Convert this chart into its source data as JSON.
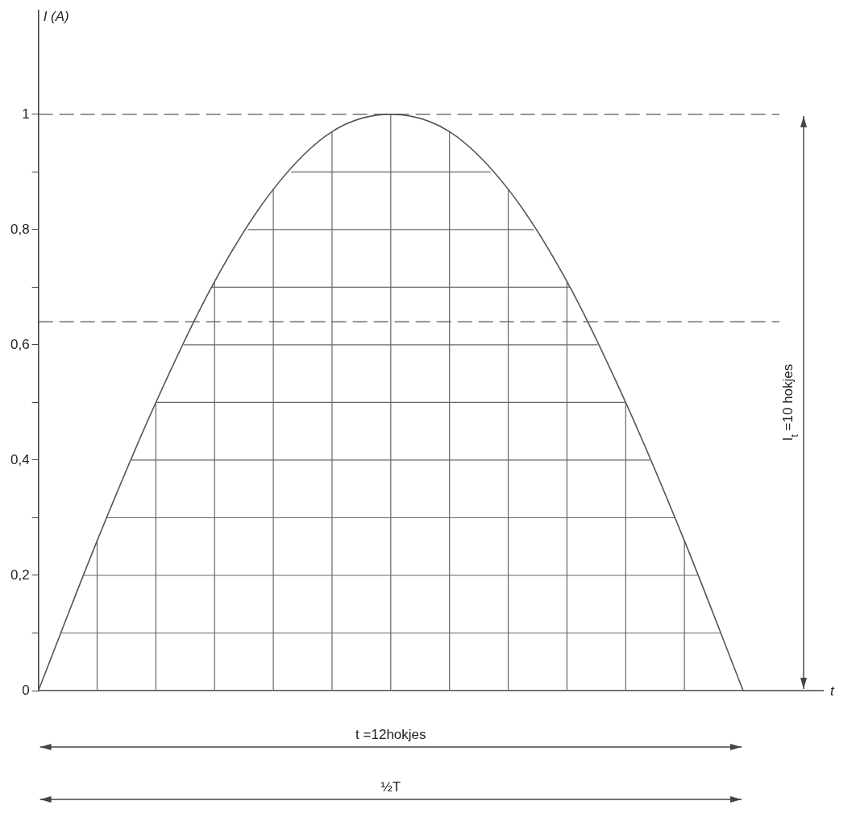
{
  "chart_data": {
    "type": "line",
    "ylabel": "I (A)",
    "categories": [
      null,
      null,
      null,
      null,
      null,
      null,
      null,
      null,
      null,
      null,
      null,
      null,
      null
    ],
    "series": [
      {
        "color": "#555555",
        "values": [
          0,
          0.26,
          0.5,
          0.71,
          0.87,
          0.97,
          1,
          0.97,
          0.87,
          0.71,
          0.5,
          0.26,
          0
        ]
      }
    ],
    "ylim": [
      0,
      1.18
    ],
    "yticks": [
      {
        "value": 0,
        "label": "0"
      },
      {
        "value": 0.1,
        "label": null
      },
      {
        "value": 0.2,
        "label": "0,2"
      },
      {
        "value": 0.3,
        "label": null
      },
      {
        "value": 0.4,
        "label": "0,4"
      },
      {
        "value": 0.5,
        "label": null
      },
      {
        "value": 0.6,
        "label": "0,6"
      },
      {
        "value": 0.7,
        "label": null
      },
      {
        "value": 0.8,
        "label": "0,8"
      },
      {
        "value": 0.9,
        "label": null
      },
      {
        "value": 1,
        "label": "1"
      }
    ],
    "tick_labels": "y",
    "grid": true,
    "marker": "none",
    "line_style": "solid",
    "legend": false,
    "ref_lines": [
      {
        "axis": "y",
        "value": 1,
        "line_style": "dashed",
        "color": "#555555"
      },
      {
        "axis": "y",
        "value": 0.64,
        "line_style": "dashed",
        "color": "#555555"
      }
    ],
    "annotations": [
      "t =12hokjes",
      "½T",
      "I$_{t}$ =10 hokjes",
      "t"
    ]
  }
}
